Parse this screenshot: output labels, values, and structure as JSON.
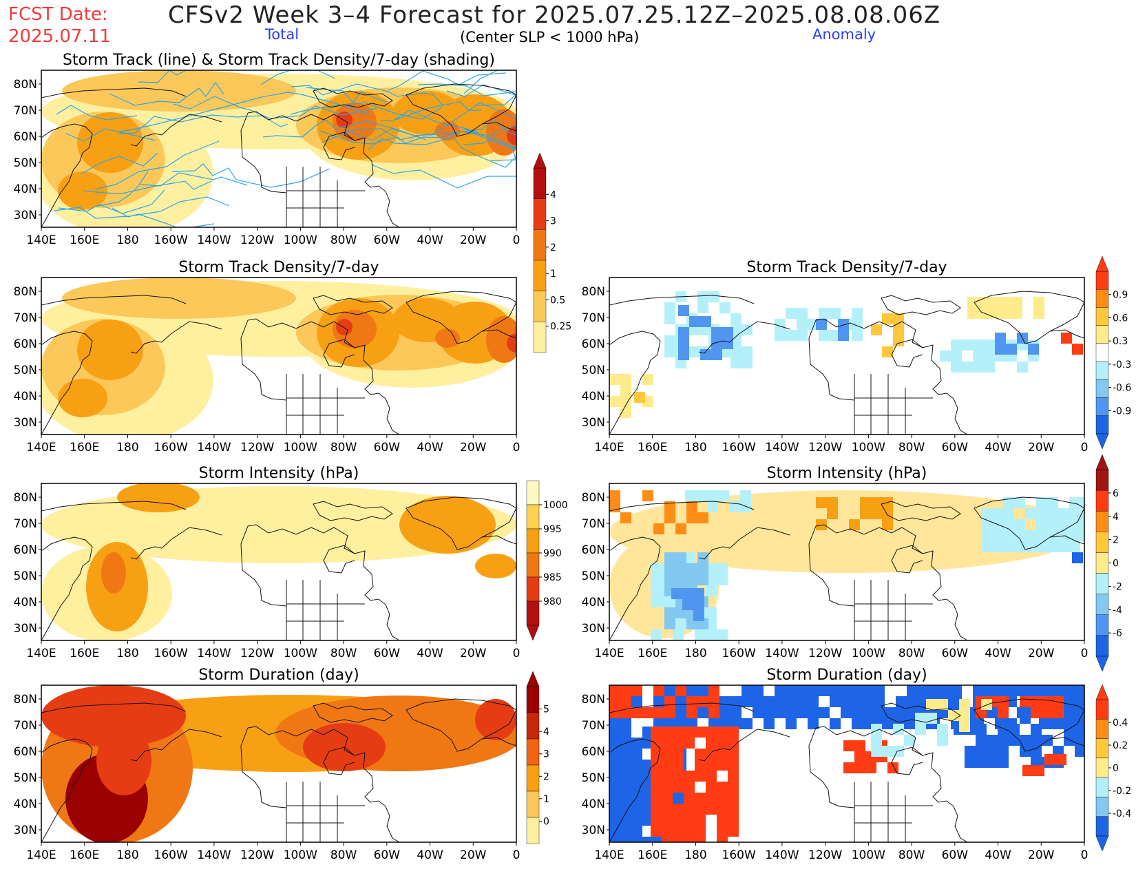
{
  "header": {
    "fcst_line1": "FCST Date:",
    "fcst_line2": "2025.07.11",
    "title": "CFSv2 Week 3–4 Forecast for 2025.07.25.12Z–2025.08.08.06Z",
    "total_label": "Total",
    "subtitle": "(Center SLP < 1000 hPa)",
    "anomaly_label": "Anomaly"
  },
  "panels": [
    {
      "id": "track-total",
      "title": "Storm Track (line) & Storm Track Density/7-day (shading)",
      "col": "left",
      "row": 0,
      "kind": "track"
    },
    {
      "id": "density-total",
      "title": "Storm Track Density/7-day",
      "col": "left",
      "row": 1,
      "kind": "density"
    },
    {
      "id": "density-anom",
      "title": "Storm Track Density/7-day",
      "col": "right",
      "row": 1,
      "kind": "density-anom"
    },
    {
      "id": "intensity-total",
      "title": "Storm Intensity (hPa)",
      "col": "left",
      "row": 2,
      "kind": "intensity"
    },
    {
      "id": "intensity-anom",
      "title": "Storm Intensity (hPa)",
      "col": "right",
      "row": 2,
      "kind": "intensity-anom"
    },
    {
      "id": "duration-total",
      "title": "Storm Duration (day)",
      "col": "left",
      "row": 3,
      "kind": "duration"
    },
    {
      "id": "duration-anom",
      "title": "Storm Duration (day)",
      "col": "right",
      "row": 3,
      "kind": "duration-anom"
    }
  ],
  "axes": {
    "lon_labels": [
      "140E",
      "160E",
      "180",
      "160W",
      "140W",
      "120W",
      "100W",
      "80W",
      "60W",
      "40W",
      "20W",
      "0"
    ],
    "lat_labels": [
      "80N",
      "70N",
      "60N",
      "50N",
      "40N",
      "30N"
    ]
  },
  "colorbars": [
    {
      "id": "cb-density-total",
      "labels": [
        "4",
        "3",
        "2",
        "1",
        "0.5",
        "0.25"
      ],
      "colors": [
        "#b40f0f",
        "#e63c14",
        "#f07814",
        "#f8a014",
        "#fcc85a",
        "#fff0a0"
      ],
      "arrow_top": true,
      "arrow_bottom": false
    },
    {
      "id": "cb-density-anom",
      "labels": [
        "0.9",
        "0.6",
        "0.3",
        "-0.3",
        "-0.6",
        "-0.9"
      ],
      "colors": [
        "#ff3c14",
        "#ff8c14",
        "#ffc83c",
        "#ffeb8c",
        "#ffffff",
        "#b4f0fa",
        "#82c8f0",
        "#5096f0",
        "#1e64e6"
      ],
      "arrow_top": true,
      "arrow_bottom": true
    },
    {
      "id": "cb-intensity-total",
      "labels": [
        "1000",
        "995",
        "990",
        "985",
        "980"
      ],
      "colors": [
        "#fff8c0",
        "#fcd250",
        "#f8a014",
        "#f07814",
        "#e63c14",
        "#b40f0f"
      ],
      "arrow_top": false,
      "arrow_bottom": true
    },
    {
      "id": "cb-intensity-anom",
      "labels": [
        "6",
        "4",
        "2",
        "0",
        "-2",
        "-4",
        "-6"
      ],
      "colors": [
        "#a01414",
        "#ff3c14",
        "#ff8c14",
        "#ffc83c",
        "#ffeb8c",
        "#b4f0fa",
        "#82c8f0",
        "#5096f0",
        "#1e64e6"
      ],
      "arrow_top": true,
      "arrow_bottom": true
    },
    {
      "id": "cb-duration-total",
      "labels": [
        "5",
        "4",
        "3",
        "2",
        "1",
        "0"
      ],
      "colors": [
        "#9a0000",
        "#c8280a",
        "#f06414",
        "#f8a014",
        "#fcc85a",
        "#fff0a0"
      ],
      "arrow_top": true,
      "arrow_bottom": false
    },
    {
      "id": "cb-duration-anom",
      "labels": [
        "0.4",
        "0.2",
        "0",
        "-0.2",
        "-0.4"
      ],
      "colors": [
        "#ff3c14",
        "#ff8c14",
        "#ffc83c",
        "#ffeb8c",
        "#b4f0fa",
        "#82c8f0",
        "#1e64e6"
      ],
      "arrow_top": true,
      "arrow_bottom": true
    }
  ]
}
